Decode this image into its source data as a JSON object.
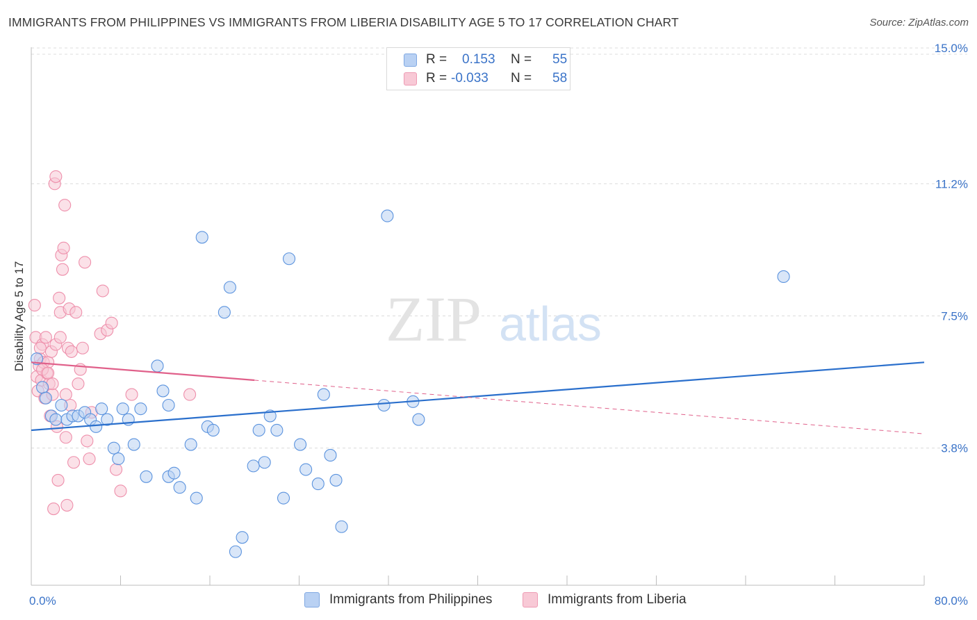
{
  "title": "IMMIGRANTS FROM PHILIPPINES VS IMMIGRANTS FROM LIBERIA DISABILITY AGE 5 TO 17 CORRELATION CHART",
  "source": "Source: ZipAtlas.com",
  "legend": {
    "r_label": "R =",
    "n_label": "N =",
    "series1": {
      "r": "0.153",
      "n": "55"
    },
    "series2": {
      "r": "-0.033",
      "n": "58"
    }
  },
  "watermark": {
    "zip": "ZIP",
    "atlas": "atlas"
  },
  "colors": {
    "blue": "#5b93de",
    "blue_fill": "#b9d1f3",
    "blue_line": "#2a6fcc",
    "pink": "#ee8fab",
    "pink_fill": "#f8c9d6",
    "pink_line": "#e0608a",
    "tick_text": "#3a73c8"
  },
  "chart_data": {
    "type": "scatter",
    "title": "IMMIGRANTS FROM PHILIPPINES VS IMMIGRANTS FROM LIBERIA DISABILITY AGE 5 TO 17 CORRELATION CHART",
    "xlabel": "",
    "ylabel": "Disability Age 5 to 17",
    "xlim": [
      0,
      80
    ],
    "ylim": [
      0,
      15.5
    ],
    "x_tick_labels": [
      "0.0%",
      "80.0%"
    ],
    "y_ticks": [
      3.8,
      7.5,
      11.2,
      15.0
    ],
    "y_tick_labels": [
      "3.8%",
      "7.5%",
      "11.2%",
      "15.0%"
    ],
    "series": [
      {
        "name": "Immigrants from Philippines",
        "color": "blue",
        "points": [
          [
            0.5,
            6.3
          ],
          [
            1.0,
            5.5
          ],
          [
            1.3,
            5.2
          ],
          [
            1.8,
            4.7
          ],
          [
            2.2,
            4.6
          ],
          [
            2.7,
            5.0
          ],
          [
            3.2,
            4.6
          ],
          [
            3.7,
            4.7
          ],
          [
            4.2,
            4.7
          ],
          [
            4.8,
            4.8
          ],
          [
            5.3,
            4.6
          ],
          [
            5.8,
            4.4
          ],
          [
            6.3,
            4.9
          ],
          [
            6.8,
            4.6
          ],
          [
            7.4,
            3.8
          ],
          [
            7.8,
            3.5
          ],
          [
            8.2,
            4.9
          ],
          [
            8.7,
            4.6
          ],
          [
            9.2,
            3.9
          ],
          [
            9.8,
            4.9
          ],
          [
            10.3,
            3.0
          ],
          [
            11.3,
            6.1
          ],
          [
            11.8,
            5.4
          ],
          [
            12.3,
            5.0
          ],
          [
            12.3,
            3.0
          ],
          [
            12.8,
            3.1
          ],
          [
            13.3,
            2.7
          ],
          [
            14.3,
            3.9
          ],
          [
            14.8,
            2.4
          ],
          [
            15.3,
            9.7
          ],
          [
            15.8,
            4.4
          ],
          [
            16.3,
            4.3
          ],
          [
            17.3,
            7.6
          ],
          [
            17.8,
            8.3
          ],
          [
            18.3,
            0.9
          ],
          [
            18.9,
            1.3
          ],
          [
            19.9,
            3.3
          ],
          [
            20.4,
            4.3
          ],
          [
            20.9,
            3.4
          ],
          [
            21.4,
            4.7
          ],
          [
            22.0,
            4.3
          ],
          [
            22.6,
            2.4
          ],
          [
            23.1,
            9.1
          ],
          [
            24.1,
            3.9
          ],
          [
            24.6,
            3.2
          ],
          [
            25.7,
            2.8
          ],
          [
            26.2,
            5.3
          ],
          [
            26.8,
            3.6
          ],
          [
            27.3,
            2.9
          ],
          [
            27.8,
            1.6
          ],
          [
            31.6,
            5.0
          ],
          [
            31.9,
            10.3
          ],
          [
            34.2,
            5.1
          ],
          [
            34.7,
            4.6
          ],
          [
            67.4,
            8.6
          ]
        ]
      },
      {
        "name": "Immigrants from Liberia",
        "color": "pink",
        "points": [
          [
            0.3,
            7.8
          ],
          [
            0.4,
            6.9
          ],
          [
            0.5,
            5.8
          ],
          [
            0.6,
            5.4
          ],
          [
            0.7,
            6.1
          ],
          [
            0.8,
            6.3
          ],
          [
            0.9,
            5.7
          ],
          [
            1.0,
            6.7
          ],
          [
            1.1,
            6.2
          ],
          [
            1.2,
            5.2
          ],
          [
            1.3,
            6.9
          ],
          [
            1.4,
            5.9
          ],
          [
            1.5,
            6.2
          ],
          [
            1.6,
            5.6
          ],
          [
            1.7,
            4.7
          ],
          [
            1.8,
            6.5
          ],
          [
            1.9,
            5.3
          ],
          [
            2.0,
            2.1
          ],
          [
            2.1,
            11.2
          ],
          [
            2.2,
            11.4
          ],
          [
            2.3,
            4.4
          ],
          [
            2.4,
            2.9
          ],
          [
            2.5,
            8.0
          ],
          [
            2.6,
            7.6
          ],
          [
            2.7,
            9.2
          ],
          [
            2.8,
            8.8
          ],
          [
            2.9,
            9.4
          ],
          [
            3.0,
            10.6
          ],
          [
            3.1,
            4.1
          ],
          [
            3.2,
            2.2
          ],
          [
            3.3,
            6.6
          ],
          [
            3.4,
            7.7
          ],
          [
            3.5,
            5.0
          ],
          [
            3.6,
            6.5
          ],
          [
            3.8,
            3.4
          ],
          [
            4.0,
            7.6
          ],
          [
            4.2,
            5.6
          ],
          [
            4.4,
            6.0
          ],
          [
            4.6,
            6.6
          ],
          [
            4.8,
            9.0
          ],
          [
            5.0,
            4.0
          ],
          [
            5.2,
            3.5
          ],
          [
            5.4,
            4.8
          ],
          [
            6.2,
            7.0
          ],
          [
            6.4,
            8.2
          ],
          [
            6.8,
            7.1
          ],
          [
            7.2,
            7.3
          ],
          [
            7.6,
            3.2
          ],
          [
            8.0,
            2.6
          ],
          [
            9.0,
            5.3
          ],
          [
            1.0,
            6.0
          ],
          [
            1.5,
            5.9
          ],
          [
            2.2,
            6.7
          ],
          [
            2.6,
            6.9
          ],
          [
            0.8,
            6.6
          ],
          [
            1.9,
            5.6
          ],
          [
            3.1,
            5.3
          ],
          [
            14.2,
            5.3
          ]
        ]
      }
    ],
    "trend_lines": [
      {
        "series": "Immigrants from Philippines",
        "x": [
          0,
          80
        ],
        "y": [
          4.3,
          6.2
        ],
        "style": "solid"
      },
      {
        "series": "Immigrants from Liberia",
        "x": [
          0,
          20
        ],
        "y": [
          6.2,
          5.7
        ],
        "style": "solid"
      },
      {
        "series": "Immigrants from Liberia",
        "x": [
          20,
          80
        ],
        "y": [
          5.7,
          4.2
        ],
        "style": "dashed"
      }
    ]
  },
  "bottom_legend": {
    "items": [
      "Immigrants from Philippines",
      "Immigrants from Liberia"
    ]
  }
}
